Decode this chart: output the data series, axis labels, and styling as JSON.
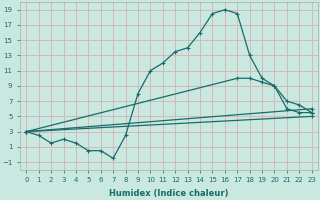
{
  "xlabel": "Humidex (Indice chaleur)",
  "background_color": "#c8e8e0",
  "grid_color": "#d4b8b8",
  "line_color": "#1a6b6b",
  "xlim": [
    -0.5,
    23.5
  ],
  "ylim": [
    -2,
    20
  ],
  "xticks": [
    0,
    1,
    2,
    3,
    4,
    5,
    6,
    7,
    8,
    9,
    10,
    11,
    12,
    13,
    14,
    15,
    16,
    17,
    18,
    19,
    20,
    21,
    22,
    23
  ],
  "yticks": [
    -1,
    1,
    3,
    5,
    7,
    9,
    11,
    13,
    15,
    17,
    19
  ],
  "line1_x": [
    0,
    1,
    2,
    3,
    4,
    5,
    6,
    7,
    8,
    9,
    10,
    11,
    12,
    13,
    14,
    15,
    16,
    17,
    18,
    19,
    20,
    21,
    22,
    23
  ],
  "line1_y": [
    3,
    2.5,
    1.5,
    2,
    1.5,
    0.5,
    0.5,
    -0.5,
    2.5,
    8,
    11,
    12,
    13.5,
    14,
    16,
    18.5,
    19,
    18.5,
    13,
    10,
    9,
    6,
    5.5,
    5.5
  ],
  "line2_x": [
    0,
    17,
    18,
    19,
    20,
    21,
    22,
    23
  ],
  "line2_y": [
    3,
    10,
    10,
    9.5,
    9,
    7,
    6.5,
    5.5
  ],
  "line3_x": [
    0,
    23
  ],
  "line3_y": [
    3,
    6
  ],
  "line4_x": [
    0,
    23
  ],
  "line4_y": [
    3,
    5.0
  ]
}
